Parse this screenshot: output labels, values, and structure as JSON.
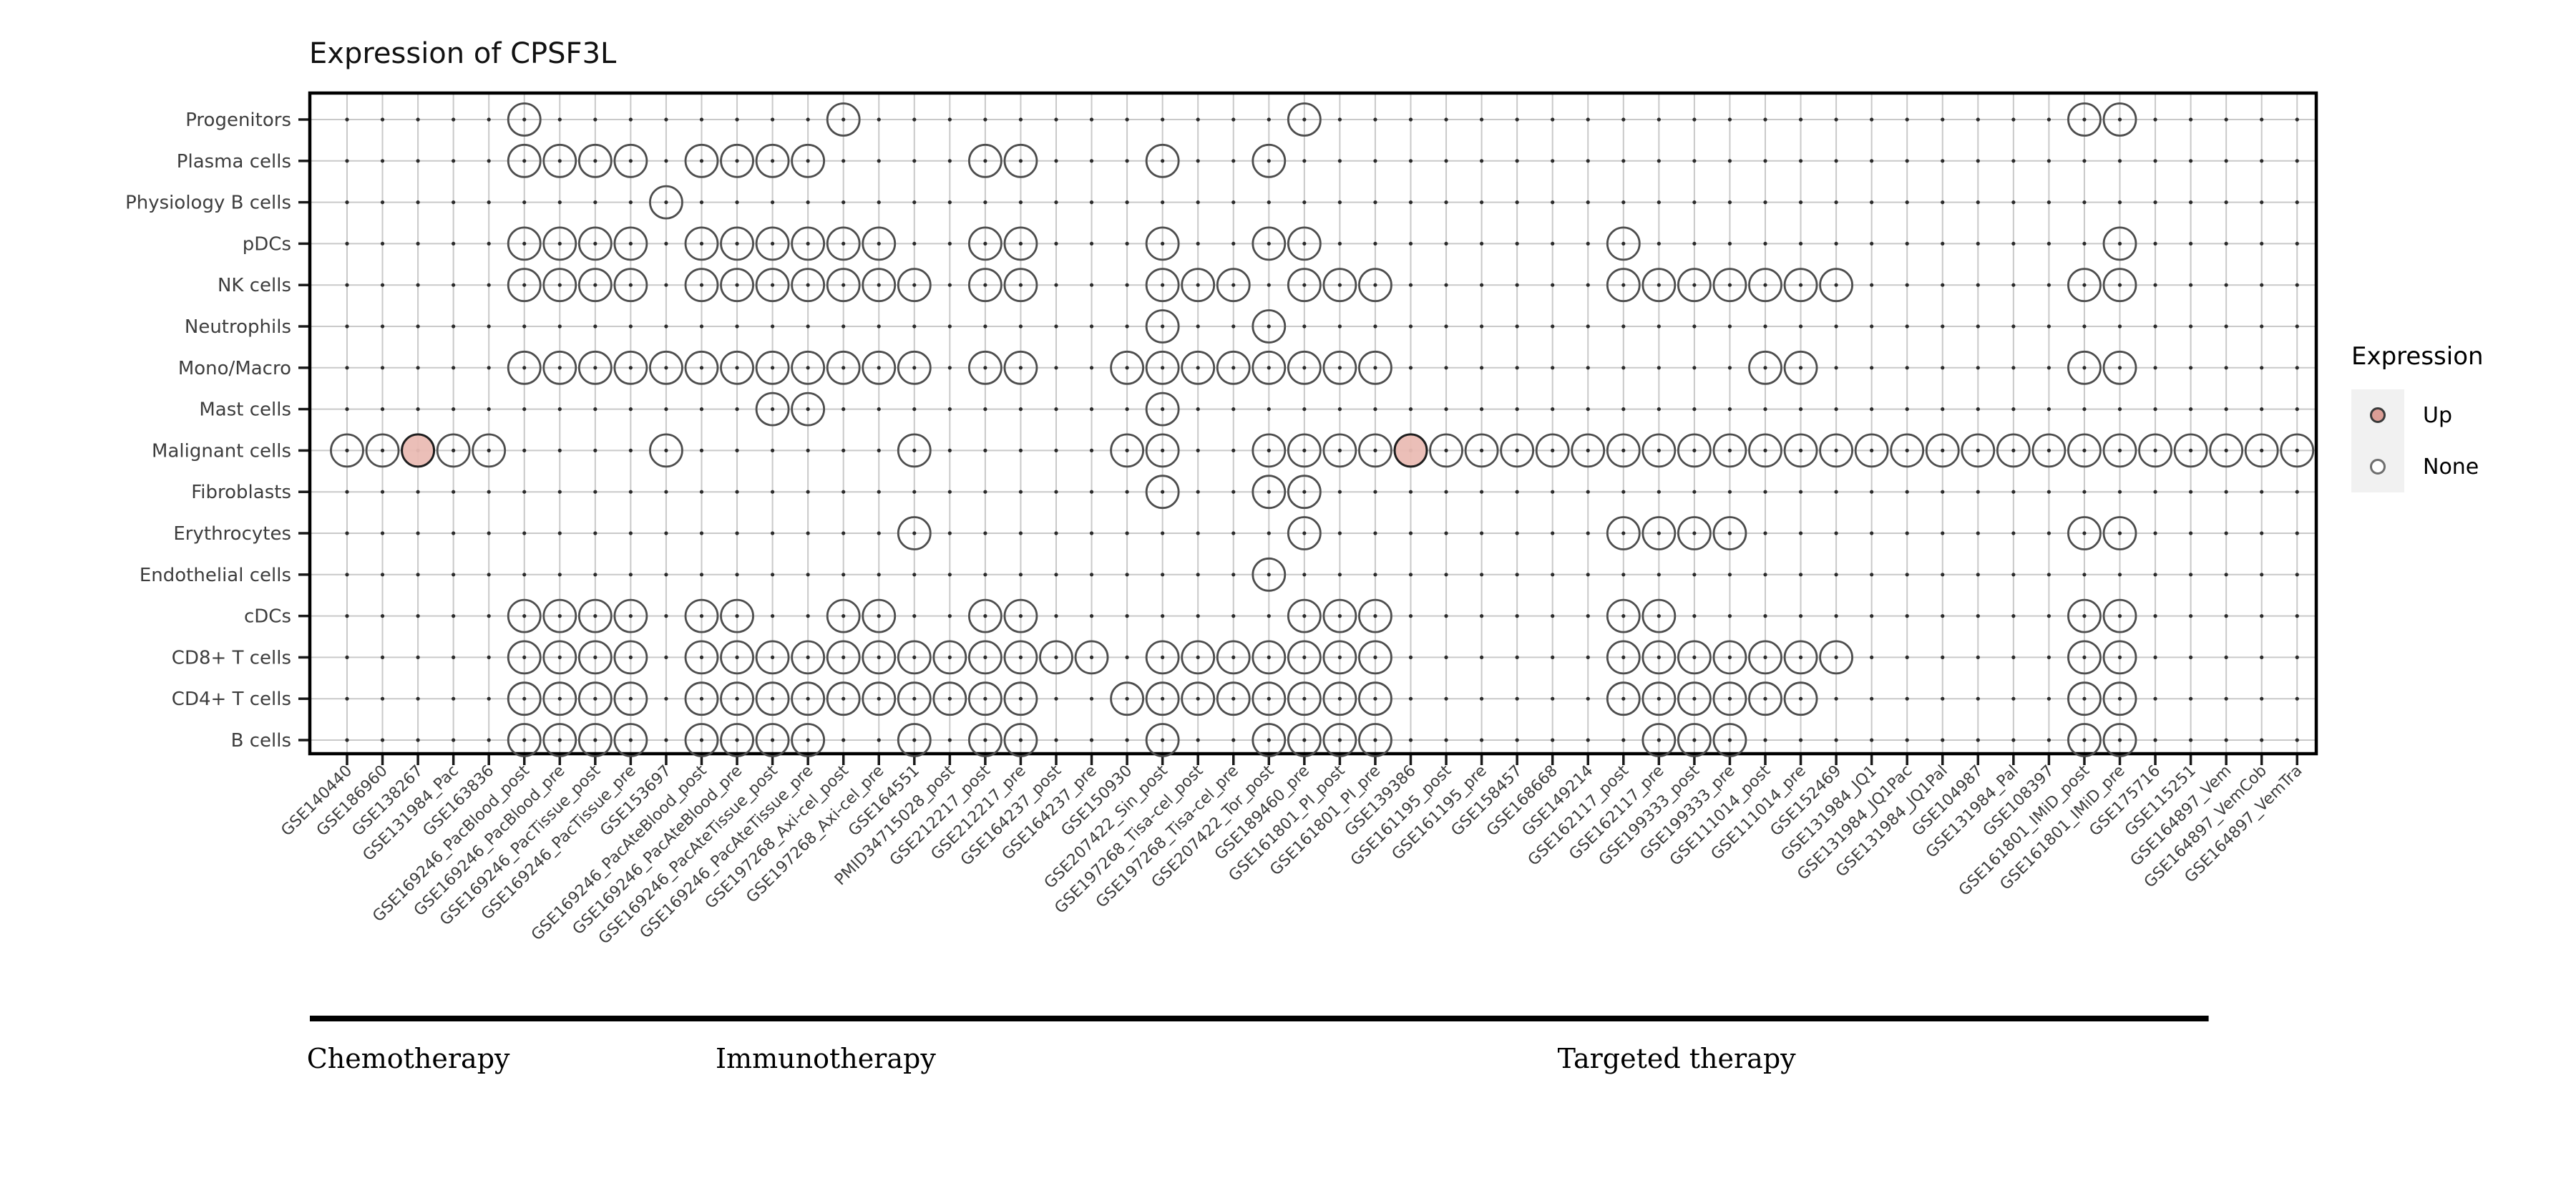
{
  "title": "Expression of CPSF3L",
  "legend": {
    "title": "Expression",
    "items": [
      {
        "label": "Up",
        "color": "#db9e96"
      },
      {
        "label": "None",
        "color": "#ffffff"
      }
    ]
  },
  "chart_data": {
    "type": "scatter",
    "title": "Expression of CPSF3L",
    "subtitle": "",
    "xlabel": "",
    "ylabel": "",
    "grid": true,
    "legend_position": "right",
    "legend_title": "Expression",
    "legend_entries": [
      "Up",
      "None"
    ],
    "rows": [
      "Progenitors",
      "Plasma cells",
      "Physiology B cells",
      "pDCs",
      "NK cells",
      "Neutrophils",
      "Mono/Macro",
      "Mast cells",
      "Malignant cells",
      "Fibroblasts",
      "Erythrocytes",
      "Endothelial cells",
      "cDCs",
      "CD8+ T cells",
      "CD4+ T cells",
      "B cells"
    ],
    "columns": [
      "GSE140440",
      "GSE186960",
      "GSE138267",
      "GSE131984_Pac",
      "GSE163836",
      "GSE169246_PacBlood_post",
      "GSE169246_PacBlood_pre",
      "GSE169246_PacTissue_post",
      "GSE169246_PacTissue_pre",
      "GSE153697",
      "GSE169246_PacAteBlood_post",
      "GSE169246_PacAteBlood_pre",
      "GSE169246_PacAteTissue_post",
      "GSE169246_PacAteTissue_pre",
      "GSE197268_Axi-cel_post",
      "GSE197268_Axi-cel_pre",
      "GSE164551",
      "PMID34715028_post",
      "GSE212217_post",
      "GSE212217_pre",
      "GSE164237_post",
      "GSE164237_pre",
      "GSE150930",
      "GSE207422_Sin_post",
      "GSE197268_Tisa-cel_post",
      "GSE197268_Tisa-cel_pre",
      "GSE207422_Tor_post",
      "GSE189460_pre",
      "GSE161801_PI_post",
      "GSE161801_PI_pre",
      "GSE139386",
      "GSE161195_post",
      "GSE161195_pre",
      "GSE158457",
      "GSE168668",
      "GSE149214",
      "GSE162117_post",
      "GSE162117_pre",
      "GSE199333_post",
      "GSE199333_pre",
      "GSE111014_post",
      "GSE111014_pre",
      "GSE152469",
      "GSE131984_JQ1",
      "GSE131984_JQ1Pac",
      "GSE131984_JQ1Pal",
      "GSE104987",
      "GSE131984_Pal",
      "GSE108397",
      "GSE161801_IMiD_post",
      "GSE161801_IMiD_pre",
      "GSE175716",
      "GSE115251",
      "GSE164897_Vem",
      "GSE164897_VemCob",
      "GSE164897_VemTra"
    ],
    "cells": {
      "Progenitors": {
        "none": [
          5,
          14,
          27,
          49,
          50
        ],
        "up": []
      },
      "Plasma cells": {
        "none": [
          5,
          6,
          7,
          8,
          10,
          11,
          12,
          13,
          18,
          19,
          23,
          26
        ],
        "up": []
      },
      "Physiology B cells": {
        "none": [
          9
        ],
        "up": []
      },
      "pDCs": {
        "none": [
          5,
          6,
          7,
          8,
          10,
          11,
          12,
          13,
          14,
          15,
          18,
          19,
          23,
          26,
          27,
          36,
          50
        ],
        "up": []
      },
      "NK cells": {
        "none": [
          5,
          6,
          7,
          8,
          10,
          11,
          12,
          13,
          14,
          15,
          16,
          18,
          19,
          23,
          24,
          25,
          27,
          28,
          29,
          36,
          37,
          38,
          39,
          40,
          41,
          42,
          49,
          50
        ],
        "up": []
      },
      "Neutrophils": {
        "none": [
          23,
          26
        ],
        "up": []
      },
      "Mono/Macro": {
        "none": [
          5,
          6,
          7,
          8,
          9,
          10,
          11,
          12,
          13,
          14,
          15,
          16,
          18,
          19,
          22,
          23,
          24,
          25,
          26,
          27,
          28,
          29,
          40,
          41,
          49,
          50
        ],
        "up": []
      },
      "Mast cells": {
        "none": [
          12,
          13,
          23
        ],
        "up": []
      },
      "Malignant cells": {
        "none": [
          0,
          1,
          3,
          4,
          9,
          16,
          22,
          23,
          26,
          27,
          28,
          29,
          31,
          32,
          33,
          34,
          35,
          36,
          37,
          38,
          39,
          40,
          41,
          42,
          43,
          44,
          45,
          46,
          47,
          48,
          49,
          50,
          51,
          52,
          53,
          54,
          55
        ],
        "up": [
          2,
          30
        ]
      },
      "Fibroblasts": {
        "none": [
          23,
          26,
          27
        ],
        "up": []
      },
      "Erythrocytes": {
        "none": [
          16,
          27,
          36,
          37,
          38,
          39,
          49,
          50
        ],
        "up": []
      },
      "Endothelial cells": {
        "none": [
          26
        ],
        "up": []
      },
      "cDCs": {
        "none": [
          5,
          6,
          7,
          8,
          10,
          11,
          14,
          15,
          18,
          19,
          27,
          28,
          29,
          36,
          37,
          49,
          50
        ],
        "up": []
      },
      "CD8+ T cells": {
        "none": [
          5,
          6,
          7,
          8,
          10,
          11,
          12,
          13,
          14,
          15,
          16,
          17,
          18,
          19,
          20,
          21,
          23,
          24,
          25,
          26,
          27,
          28,
          29,
          36,
          37,
          38,
          39,
          40,
          41,
          42,
          49,
          50
        ],
        "up": []
      },
      "CD4+ T cells": {
        "none": [
          5,
          6,
          7,
          8,
          10,
          11,
          12,
          13,
          14,
          15,
          16,
          17,
          18,
          19,
          22,
          23,
          24,
          25,
          26,
          27,
          28,
          29,
          36,
          37,
          38,
          39,
          40,
          41,
          49,
          50
        ],
        "up": []
      },
      "B cells": {
        "none": [
          5,
          6,
          7,
          8,
          10,
          11,
          12,
          13,
          16,
          18,
          19,
          23,
          26,
          27,
          28,
          29,
          37,
          38,
          39,
          49,
          50
        ],
        "up": []
      }
    },
    "groups": [
      {
        "label": "Chemotherapy",
        "start": 0,
        "end": 4
      },
      {
        "label": "Immunotherapy",
        "start": 5,
        "end": 22
      },
      {
        "label": "Targeted therapy",
        "start": 23,
        "end": 52
      }
    ],
    "colors": {
      "up_fill": "#eabcb4",
      "up_stroke": "#1f1f1f",
      "none_fill": "none",
      "circle_stroke": "#4d4d4d",
      "gridline": "#c9c9c9",
      "grid_dot": "#2b2b2b",
      "panel_border": "#000000",
      "axis_text": "#3d3d3d"
    }
  }
}
